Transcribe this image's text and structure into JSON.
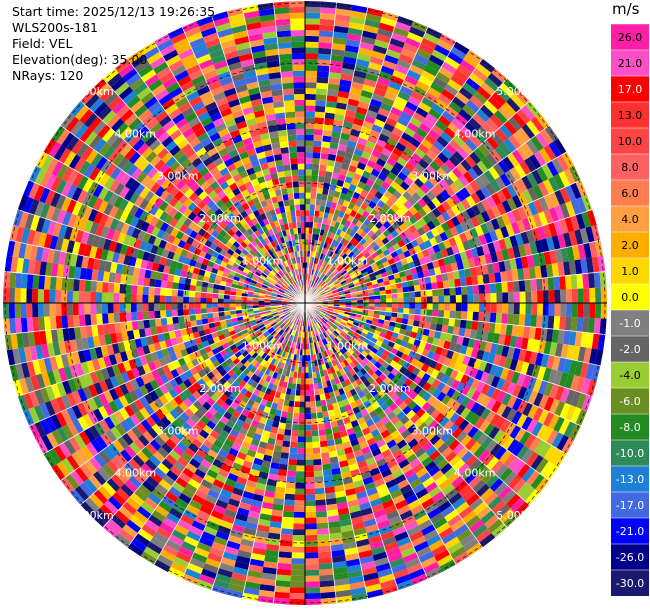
{
  "header": {
    "start_time": "Start time: 2025/12/13 19:26:35",
    "radar": "WLS200s-181",
    "field": "Field: VEL",
    "elevation": "Elevation(deg): 35.00",
    "nrays": "NRays: 120"
  },
  "chart_data": {
    "type": "heatmap",
    "subtype": "ppi",
    "field": "VEL",
    "elevation_deg": 35.0,
    "n_rays": 120,
    "unit": "m/s",
    "range_rings_km": [
      1.0,
      2.0,
      3.0,
      4.0,
      5.0
    ],
    "ring_labels": [
      "1.00km",
      "2.00km",
      "3.00km",
      "4.00km",
      "5.00km"
    ],
    "colorbar": {
      "unit": "m/s",
      "ticks": [
        "26.0",
        "21.0",
        "17.0",
        "13.0",
        "10.0",
        "8.0",
        "6.0",
        "4.0",
        "2.0",
        "1.0",
        "0.0",
        "-1.0",
        "-2.0",
        "-4.0",
        "-6.0",
        "-8.0",
        "-10.0",
        "-13.0",
        "-17.0",
        "-21.0",
        "-26.0",
        "-30.0"
      ],
      "colors": [
        "#ff1fa6",
        "#ff4fc8",
        "#ff0000",
        "#ff3030",
        "#ff4444",
        "#ff6060",
        "#ff7d4f",
        "#ffa040",
        "#ffae00",
        "#ffd700",
        "#ffff00",
        "#7f7f7f",
        "#656565",
        "#9acd32",
        "#6b8e23",
        "#228b22",
        "#2e8b57",
        "#1e7fd6",
        "#4169e1",
        "#0000ff",
        "#00008b",
        "#191970"
      ]
    }
  }
}
